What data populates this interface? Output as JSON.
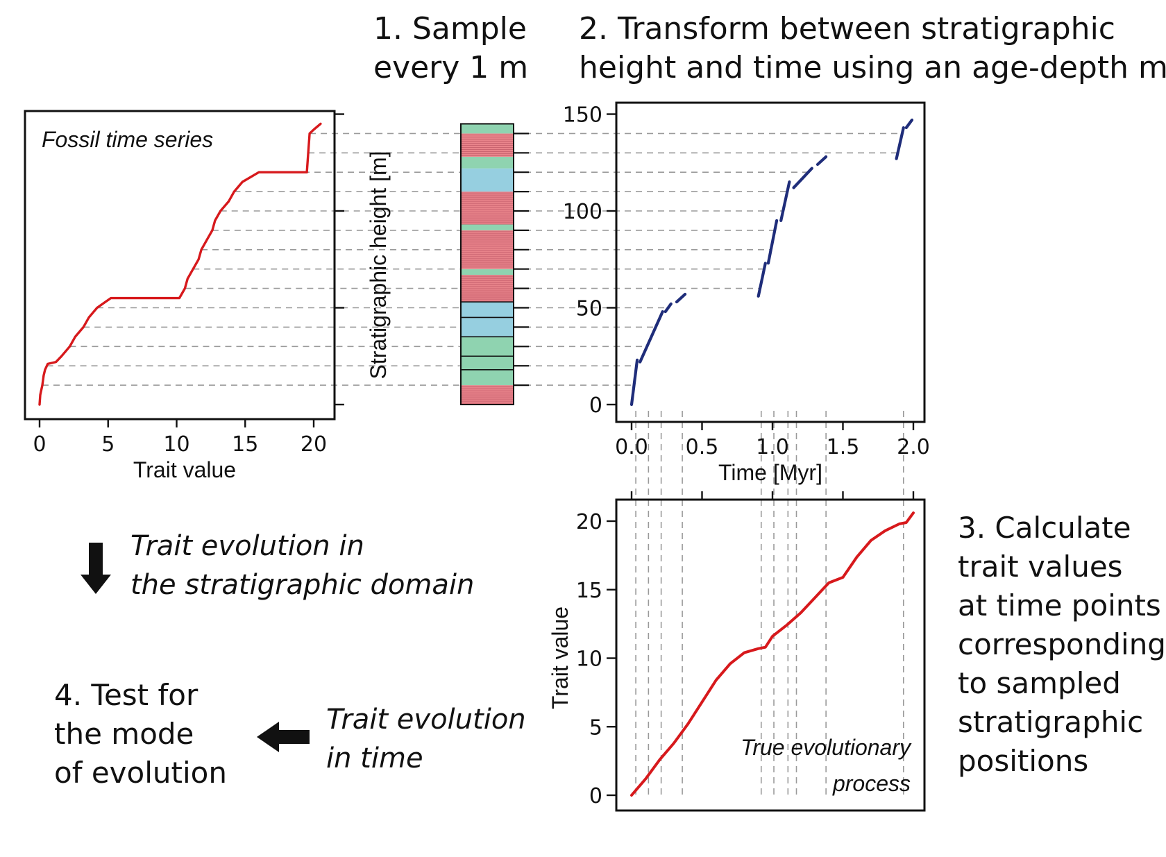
{
  "steps": {
    "step1": [
      "1. Sample",
      "every 1 m"
    ],
    "step2": [
      "2. Transform between stratigraphic",
      "height and time using an age-depth model"
    ],
    "step3": [
      "3. Calculate",
      "trait values",
      "at time points",
      "corresponding",
      "to sampled",
      "stratigraphic",
      "positions"
    ],
    "step4": [
      "4. Test for",
      "the mode",
      "of evolution"
    ]
  },
  "annotations": {
    "strat_domain": [
      "Trait evolution in",
      "the stratigraphic domain"
    ],
    "time_domain": [
      "Trait evolution",
      "in time"
    ]
  },
  "colors": {
    "trait_red": "#d7191c",
    "age_model_blue": "#1f2d7a",
    "strat_domain_text": "#8b1a2b",
    "time_domain_text": "#d7191c",
    "layer_green": "#8fd3b0",
    "layer_blue": "#96cfe0",
    "layer_red": "#e8838a",
    "dashed_gray": "#9a9a9a"
  },
  "icons": [
    "arrow-down-icon",
    "arrow-left-icon"
  ],
  "sample_heights_m": [
    10,
    20,
    30,
    40,
    50,
    60,
    70,
    80,
    90,
    100,
    110,
    120,
    130,
    140
  ],
  "column_layers": [
    {
      "from": 0,
      "to": 10,
      "type": "red"
    },
    {
      "from": 10,
      "to": 18,
      "type": "green"
    },
    {
      "from": 18,
      "to": 25,
      "type": "green"
    },
    {
      "from": 25,
      "to": 35,
      "type": "green"
    },
    {
      "from": 35,
      "to": 45,
      "type": "blue"
    },
    {
      "from": 45,
      "to": 53,
      "type": "blue"
    },
    {
      "from": 53,
      "to": 67,
      "type": "red"
    },
    {
      "from": 67,
      "to": 70,
      "type": "green"
    },
    {
      "from": 70,
      "to": 90,
      "type": "red"
    },
    {
      "from": 90,
      "to": 93,
      "type": "green"
    },
    {
      "from": 93,
      "to": 110,
      "type": "red"
    },
    {
      "from": 110,
      "to": 122,
      "type": "blue"
    },
    {
      "from": 122,
      "to": 128,
      "type": "green"
    },
    {
      "from": 128,
      "to": 140,
      "type": "red"
    },
    {
      "from": 140,
      "to": 145,
      "type": "green"
    }
  ],
  "chart_data": [
    {
      "id": "fossil",
      "type": "line",
      "title": "Fossil time series",
      "xlabel": "Trait value",
      "ylabel": "Stratigraphic height [m]",
      "xlim": [
        -1,
        21
      ],
      "ylim": [
        0,
        150
      ],
      "xticks": [
        0,
        5,
        10,
        15,
        20
      ],
      "yticks": [
        0,
        50,
        100,
        150
      ],
      "ytick_labels_shown": false,
      "series": [
        {
          "x": [
            0,
            0.05,
            0.2,
            0.3,
            0.4,
            0.6,
            1.2,
            1.6,
            2.2,
            2.6,
            3.2,
            3.6,
            4.2,
            4.8,
            5.2,
            7.5,
            10.2,
            10.6,
            10.8,
            11.2,
            11.6,
            11.8,
            12.2,
            12.6,
            12.8,
            13.2,
            13.8,
            14.2,
            14.8,
            16,
            17.5,
            19.5,
            19.7,
            20.0,
            20.5
          ],
          "y": [
            0,
            5,
            10,
            15,
            18,
            21,
            22,
            25,
            30,
            35,
            40,
            45,
            50,
            53,
            55,
            55,
            55,
            60,
            65,
            70,
            75,
            80,
            85,
            90,
            95,
            100,
            105,
            110,
            115,
            120,
            120,
            120,
            140,
            142,
            145
          ]
        }
      ]
    },
    {
      "id": "age-depth",
      "type": "line",
      "title": "",
      "xlabel": "Time [Myr]",
      "ylabel": "",
      "xlim": [
        -0.05,
        2.05
      ],
      "ylim": [
        -8,
        158
      ],
      "xticks": [
        0.0,
        0.5,
        1.0,
        1.5,
        2.0
      ],
      "xtick_labels": [
        "0.0",
        "0.5",
        "1.0",
        "1.5",
        "2.0"
      ],
      "yticks": [
        0,
        50,
        100,
        150
      ],
      "series": [
        {
          "x": [
            0.0,
            0.04
          ],
          "y": [
            0,
            23
          ]
        },
        {
          "x": [
            0.06,
            0.22
          ],
          "y": [
            22,
            48
          ]
        },
        {
          "x": [
            0.24,
            0.28
          ],
          "y": [
            48,
            52
          ]
        },
        {
          "x": [
            0.32,
            0.38
          ],
          "y": [
            53,
            57
          ]
        },
        {
          "x": [
            0.9,
            0.95
          ],
          "y": [
            56,
            73
          ]
        },
        {
          "x": [
            0.97,
            1.03
          ],
          "y": [
            73,
            95
          ]
        },
        {
          "x": [
            1.06,
            1.12
          ],
          "y": [
            95,
            115
          ]
        },
        {
          "x": [
            1.15,
            1.28
          ],
          "y": [
            112,
            122
          ]
        },
        {
          "x": [
            1.32,
            1.38
          ],
          "y": [
            124,
            128
          ]
        },
        {
          "x": [
            1.88,
            1.93
          ],
          "y": [
            127,
            143
          ]
        },
        {
          "x": [
            1.95,
            1.99
          ],
          "y": [
            143,
            147
          ]
        }
      ]
    },
    {
      "id": "true-process",
      "type": "line",
      "title": "True evolutionary process",
      "xlabel": "",
      "ylabel": "Trait value",
      "xlim": [
        -0.05,
        2.05
      ],
      "ylim": [
        -1,
        21
      ],
      "xticks": [
        0.0,
        0.5,
        1.0,
        1.5,
        2.0
      ],
      "yticks": [
        0,
        5,
        10,
        15,
        20
      ],
      "series": [
        {
          "x": [
            0,
            0.1,
            0.2,
            0.3,
            0.4,
            0.5,
            0.6,
            0.7,
            0.8,
            0.9,
            0.95,
            1.0,
            1.1,
            1.2,
            1.3,
            1.4,
            1.5,
            1.6,
            1.7,
            1.8,
            1.9,
            1.95,
            2.0
          ],
          "y": [
            0,
            1.2,
            2.6,
            3.8,
            5.2,
            6.8,
            8.4,
            9.6,
            10.4,
            10.7,
            10.8,
            11.6,
            12.4,
            13.3,
            14.4,
            15.5,
            15.9,
            17.4,
            18.6,
            19.3,
            19.8,
            19.9,
            20.6
          ]
        }
      ]
    }
  ]
}
